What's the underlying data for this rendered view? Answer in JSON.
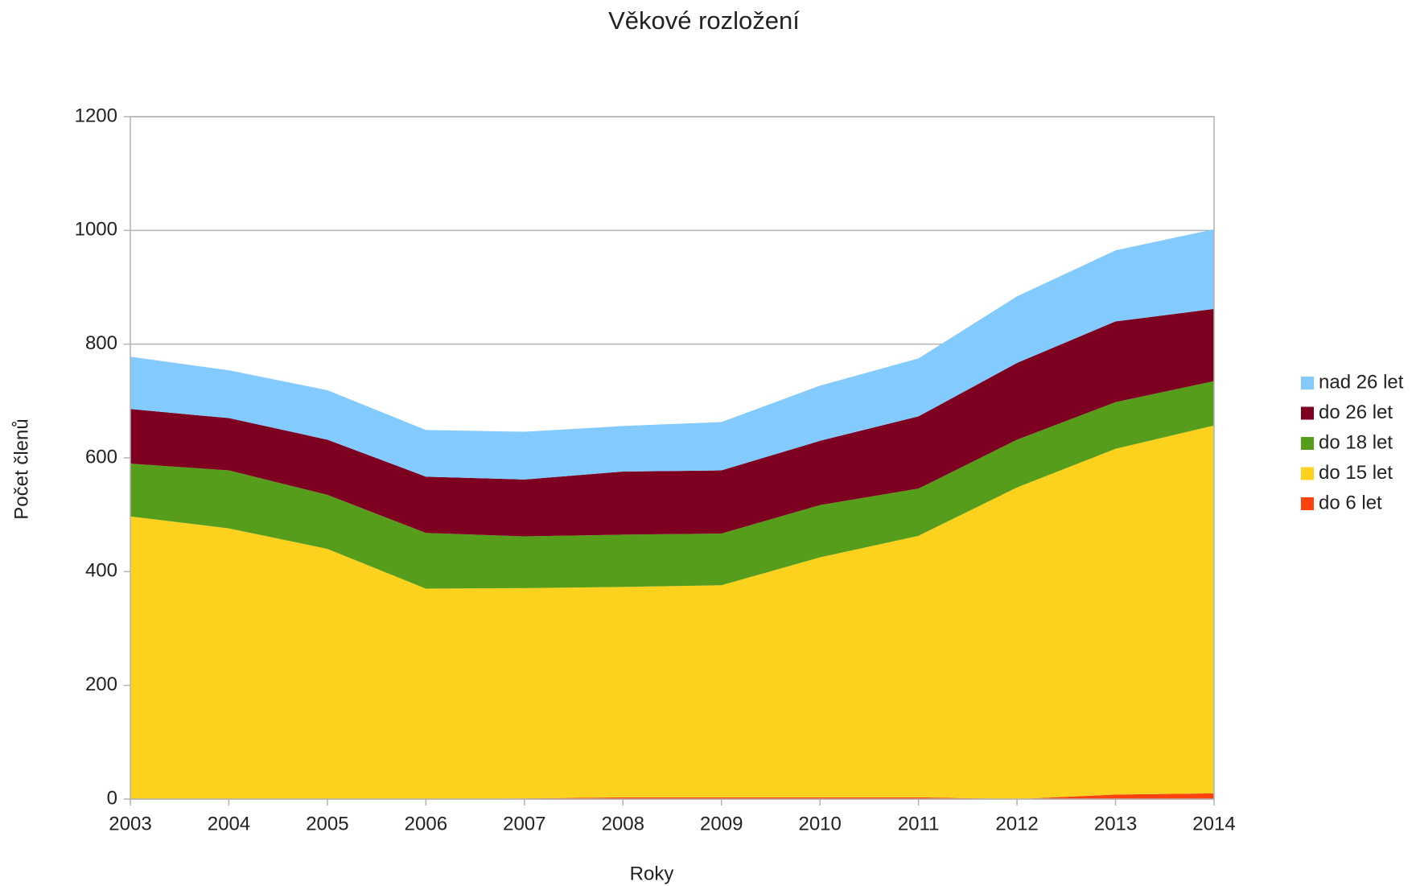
{
  "chart_data": {
    "type": "stacked-area",
    "title": "Věkové rozložení",
    "x_label": "Roky",
    "y_label": "Počet členů",
    "x": [
      2003,
      2004,
      2005,
      2006,
      2007,
      2008,
      2009,
      2010,
      2011,
      2012,
      2013,
      2014
    ],
    "xlim": [
      2003,
      2014
    ],
    "xticks": [
      2003,
      2004,
      2005,
      2006,
      2007,
      2008,
      2009,
      2010,
      2011,
      2012,
      2013,
      2014
    ],
    "ylim": [
      0,
      1200
    ],
    "yticks": [
      0,
      200,
      400,
      600,
      800,
      1000,
      1200
    ],
    "grid": true,
    "legend": "right",
    "series": [
      {
        "name": "do 6 let",
        "color": "#ff420e",
        "values": [
          0,
          0,
          0,
          0,
          1,
          3,
          3,
          3,
          3,
          0,
          8,
          10
        ]
      },
      {
        "name": "do 15 let",
        "color": "#fcd21f",
        "values": [
          497,
          476,
          440,
          370,
          370,
          370,
          373,
          422,
          460,
          548,
          608,
          647
        ]
      },
      {
        "name": "do 18 let",
        "color": "#579d1c",
        "values": [
          93,
          102,
          95,
          98,
          91,
          92,
          91,
          92,
          83,
          84,
          82,
          78
        ]
      },
      {
        "name": "do 26 let",
        "color": "#7e0021",
        "values": [
          96,
          92,
          97,
          99,
          100,
          111,
          111,
          113,
          127,
          135,
          142,
          127
        ]
      },
      {
        "name": "nad 26 let",
        "color": "#83caff",
        "values": [
          92,
          84,
          87,
          82,
          84,
          80,
          85,
          97,
          102,
          117,
          125,
          140
        ]
      }
    ]
  }
}
